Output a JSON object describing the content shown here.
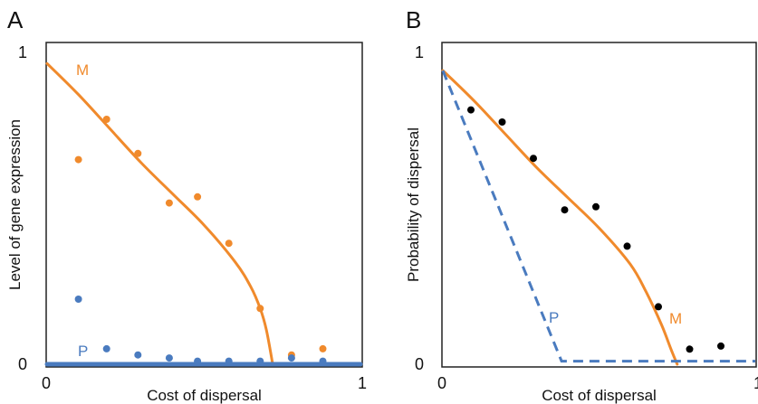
{
  "colors": {
    "M": "#f08a2c",
    "P": "#4a7bbf",
    "dots_B": "#000000",
    "frame": "#222222"
  },
  "chart_data": [
    {
      "panel": "A",
      "type": "scatter",
      "xlabel": "Cost of dispersal",
      "ylabel": "Level of gene expression",
      "xlim": [
        0,
        1
      ],
      "ylim": [
        0,
        1
      ],
      "x_ticks": [
        "0",
        "1"
      ],
      "y_ticks": [
        "0",
        "1"
      ],
      "grid": false,
      "series": [
        {
          "name": "M",
          "style": "line",
          "color": "#f08a2c",
          "x": [
            0.0,
            0.1,
            0.2,
            0.3,
            0.4,
            0.5,
            0.6,
            0.65,
            0.68,
            0.7,
            0.72
          ],
          "y": [
            0.97,
            0.87,
            0.76,
            0.65,
            0.55,
            0.45,
            0.33,
            0.25,
            0.18,
            0.11,
            0.0
          ]
        },
        {
          "name": "M",
          "style": "points",
          "color": "#f08a2c",
          "x": [
            0.1,
            0.19,
            0.29,
            0.39,
            0.48,
            0.58,
            0.68,
            0.78,
            0.88
          ],
          "y": [
            0.66,
            0.79,
            0.68,
            0.52,
            0.54,
            0.39,
            0.18,
            0.03,
            0.05
          ]
        },
        {
          "name": "P",
          "style": "line",
          "color": "#4a7bbf",
          "x": [
            0.0,
            1.0
          ],
          "y": [
            0.0,
            0.0
          ]
        },
        {
          "name": "P",
          "style": "points",
          "color": "#4a7bbf",
          "x": [
            0.1,
            0.19,
            0.29,
            0.39,
            0.48,
            0.58,
            0.68,
            0.78,
            0.88
          ],
          "y": [
            0.21,
            0.05,
            0.03,
            0.02,
            0.01,
            0.01,
            0.01,
            0.02,
            0.01
          ]
        }
      ],
      "annotations": [
        "M",
        "P"
      ]
    },
    {
      "panel": "B",
      "type": "scatter",
      "xlabel": "Cost of dispersal",
      "ylabel": "Probability of dispersal",
      "xlim": [
        0,
        1
      ],
      "ylim": [
        0,
        1
      ],
      "x_ticks": [
        "0",
        "1"
      ],
      "y_ticks": [
        "0",
        "1"
      ],
      "grid": false,
      "series": [
        {
          "name": "M",
          "style": "line",
          "color": "#f08a2c",
          "x": [
            0.0,
            0.1,
            0.2,
            0.3,
            0.4,
            0.5,
            0.6,
            0.65,
            0.7,
            0.73,
            0.75
          ],
          "y": [
            0.97,
            0.87,
            0.76,
            0.65,
            0.55,
            0.45,
            0.33,
            0.24,
            0.13,
            0.05,
            0.0
          ]
        },
        {
          "name": "",
          "style": "points",
          "color": "#000000",
          "x": [
            0.09,
            0.19,
            0.29,
            0.39,
            0.49,
            0.59,
            0.69,
            0.79,
            0.89
          ],
          "y": [
            0.84,
            0.8,
            0.68,
            0.51,
            0.52,
            0.39,
            0.19,
            0.05,
            0.06
          ]
        },
        {
          "name": "P",
          "style": "dashed-line",
          "color": "#4a7bbf",
          "x": [
            0.0,
            0.38,
            1.0
          ],
          "y": [
            0.97,
            0.01,
            0.01
          ]
        }
      ],
      "annotations": [
        "M",
        "P"
      ]
    }
  ]
}
